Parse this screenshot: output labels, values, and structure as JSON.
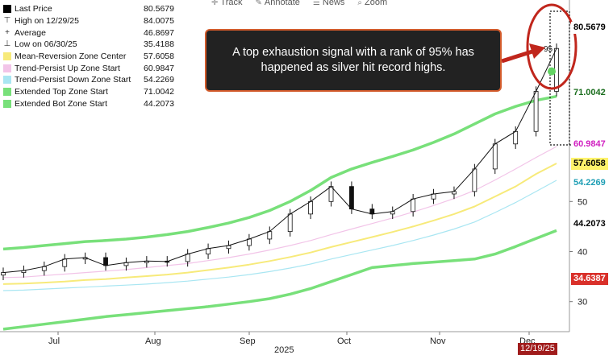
{
  "toolbar": {
    "track_label": "Track",
    "annotate_label": "Annotate",
    "news_label": "News",
    "zoom_label": "Zoom"
  },
  "legend": {
    "rows": [
      {
        "label": "Last Price",
        "value": "80.5679",
        "color": "#000000",
        "marker": ""
      },
      {
        "label": "High on 12/29/25",
        "value": "84.0075",
        "color": "",
        "marker": "⊤"
      },
      {
        "label": "Average",
        "value": "46.8697",
        "color": "",
        "marker": "+"
      },
      {
        "label": "Low on 06/30/25",
        "value": "35.4188",
        "color": "",
        "marker": "⊥"
      },
      {
        "label": "Mean-Reversion Zone Center",
        "value": "57.6058",
        "color": "#f7ea7a",
        "marker": ""
      },
      {
        "label": "Trend-Persist Up Zone Start",
        "value": "60.9847",
        "color": "#f2c4e8",
        "marker": ""
      },
      {
        "label": "Trend-Persist Down Zone Start",
        "value": "54.2269",
        "color": "#a9e6f2",
        "marker": ""
      },
      {
        "label": "Extended Top Zone Start",
        "value": "71.0042",
        "color": "#78e07a",
        "marker": ""
      },
      {
        "label": "Extended Bot Zone Start",
        "value": "44.2073",
        "color": "#78e07a",
        "marker": ""
      }
    ]
  },
  "callout": {
    "text": "A top exhaustion signal with a rank of 95% has happened as silver hit record highs."
  },
  "signal_label": "95",
  "right_tags": {
    "last_price": {
      "text": "80.5679",
      "bg": "#ffffff",
      "fg": "#000000",
      "value": 80.5679
    },
    "ext_top": {
      "text": "71.0042",
      "bg": "#ffffff",
      "fg": "#1b6e1e",
      "value": 71.0042
    },
    "tp_up": {
      "text": "60.9847",
      "bg": "#ffffff",
      "fg": "#d01fc0",
      "value": 60.9847
    },
    "mr_center": {
      "text": "57.6058",
      "bg": "#fff36b",
      "fg": "#000000",
      "value": 57.6058
    },
    "tp_down": {
      "text": "54.2269",
      "bg": "#ffffff",
      "fg": "#1f9fb5",
      "value": 54.2269
    },
    "ext_bot": {
      "text": "44.2073",
      "bg": "#ffffff",
      "fg": "#000000",
      "value": 44.2073
    },
    "low_tag": {
      "text": "34.6387",
      "bg": "#d9302a",
      "fg": "#ffffff",
      "value": 34.6387
    },
    "date_tag": {
      "text": "12/19/25",
      "bg": "#a01c1c",
      "fg": "#ffffff"
    }
  },
  "chart_data": {
    "type": "line",
    "title": "",
    "xlabel": "2025",
    "ylabel": "",
    "ylim": [
      24,
      88
    ],
    "y_ticks": [
      30,
      40,
      50
    ],
    "x_ticks": [
      "Jul",
      "Aug",
      "Sep",
      "Oct",
      "Nov",
      "Dec"
    ],
    "dates": [
      "06/23",
      "06/30",
      "07/07",
      "07/14",
      "07/21",
      "07/28",
      "08/04",
      "08/11",
      "08/18",
      "08/25",
      "09/01",
      "09/08",
      "09/15",
      "09/22",
      "09/29",
      "10/06",
      "10/13",
      "10/20",
      "10/27",
      "11/03",
      "11/10",
      "11/17",
      "11/24",
      "12/01",
      "12/08",
      "12/15",
      "12/22",
      "12/29"
    ],
    "series": [
      {
        "name": "Last Price",
        "color": "#000000",
        "values": [
          35.8,
          36.2,
          37.0,
          38.5,
          38.8,
          37.2,
          37.8,
          38.1,
          38.0,
          39.5,
          40.6,
          41.2,
          42.5,
          44.0,
          47.5,
          50.0,
          53.0,
          48.5,
          47.5,
          48.0,
          50.5,
          51.5,
          52.0,
          56.5,
          61.5,
          64.0,
          72.0,
          80.57
        ]
      },
      {
        "name": "Mean-Reversion Zone Center",
        "color": "#f7ea7a",
        "values": [
          33.5,
          33.6,
          33.8,
          34.0,
          34.3,
          34.5,
          34.8,
          35.1,
          35.4,
          35.8,
          36.3,
          36.8,
          37.4,
          38.1,
          38.9,
          39.8,
          40.9,
          41.9,
          42.9,
          43.9,
          45.0,
          46.2,
          47.5,
          49.0,
          51.0,
          53.0,
          55.5,
          57.6
        ]
      },
      {
        "name": "Trend-Persist Up Zone Start",
        "color": "#f2c4e8",
        "values": [
          34.8,
          34.9,
          35.2,
          35.5,
          35.8,
          36.1,
          36.4,
          36.8,
          37.2,
          37.6,
          38.2,
          38.8,
          39.5,
          40.3,
          41.2,
          42.2,
          43.4,
          44.5,
          45.6,
          46.7,
          47.9,
          49.2,
          50.6,
          52.2,
          54.3,
          56.5,
          58.8,
          60.98
        ]
      },
      {
        "name": "Trend-Persist Down Zone Start",
        "color": "#a9e6f2",
        "values": [
          32.2,
          32.3,
          32.5,
          32.7,
          32.9,
          33.1,
          33.3,
          33.5,
          33.8,
          34.1,
          34.5,
          34.9,
          35.4,
          36.0,
          36.7,
          37.5,
          38.5,
          39.4,
          40.3,
          41.2,
          42.2,
          43.3,
          44.5,
          45.9,
          47.8,
          49.8,
          52.0,
          54.23
        ]
      },
      {
        "name": "Extended Top Zone Start",
        "color": "#78e07a",
        "values": [
          40.5,
          40.8,
          41.2,
          41.6,
          42.0,
          42.2,
          42.5,
          42.9,
          43.4,
          44.0,
          44.8,
          45.7,
          46.8,
          48.2,
          50.0,
          52.2,
          54.8,
          56.5,
          57.8,
          59.0,
          60.3,
          61.8,
          63.5,
          65.5,
          67.5,
          69.0,
          70.2,
          71.0
        ]
      },
      {
        "name": "Extended Bot Zone Start",
        "color": "#78e07a",
        "values": [
          24.5,
          25.0,
          25.5,
          26.0,
          26.5,
          27.0,
          27.4,
          27.8,
          28.2,
          28.6,
          29.0,
          29.5,
          30.0,
          30.6,
          31.5,
          32.6,
          34.0,
          35.4,
          36.8,
          37.2,
          37.6,
          37.9,
          38.2,
          38.5,
          39.5,
          41.0,
          42.6,
          44.2
        ]
      }
    ]
  }
}
